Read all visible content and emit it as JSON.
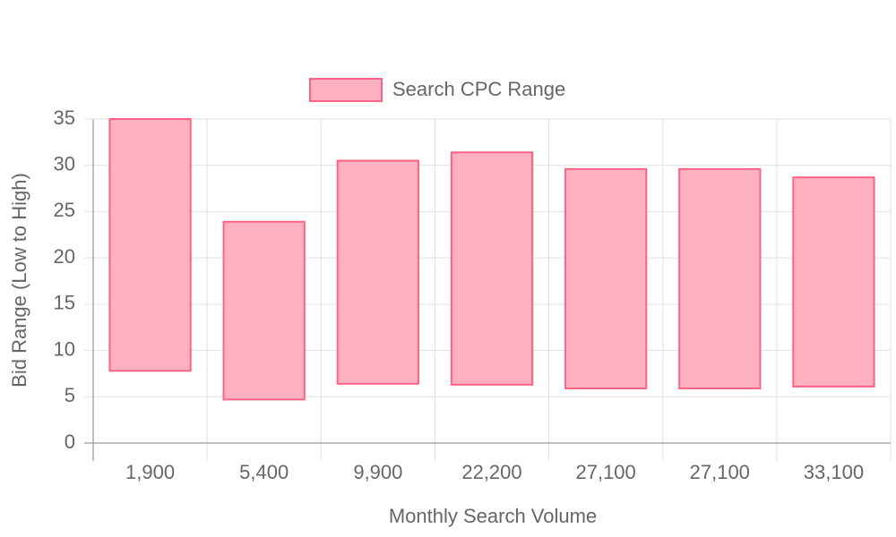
{
  "chart_data": {
    "type": "floating-bar",
    "legend_position": "top",
    "x_label": "Monthly Search Volume",
    "y_label": "Bid Range (Low to High)",
    "categories": [
      "1,900",
      "5,400",
      "9,900",
      "22,200",
      "27,100",
      "27,100",
      "33,100"
    ],
    "series": [
      {
        "name": "Search CPC Range",
        "color": "#ff6384",
        "fill": "#ffb1c1",
        "values": [
          [
            7.8,
            35
          ],
          [
            4.7,
            23.9
          ],
          [
            6.4,
            30.5
          ],
          [
            6.3,
            31.4
          ],
          [
            5.9,
            29.6
          ],
          [
            5.9,
            29.6
          ],
          [
            6.1,
            28.7
          ]
        ]
      }
    ],
    "ylim": [
      0,
      35
    ],
    "yticks": [
      0,
      5,
      10,
      15,
      20,
      25,
      30,
      35
    ],
    "grid": true
  }
}
